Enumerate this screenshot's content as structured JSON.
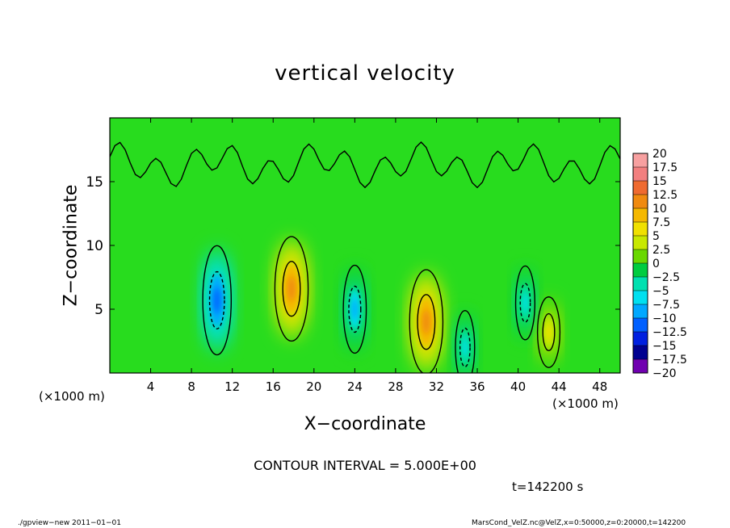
{
  "chart_data": {
    "type": "heatmap",
    "title": "vertical velocity",
    "xlabel": "X−coordinate",
    "ylabel": "Z−coordinate",
    "x_unit_left": "(×1000 m)",
    "x_unit_right": "(×1000 m)",
    "xlim": [
      0,
      50
    ],
    "ylim": [
      0,
      20
    ],
    "x_ticks": [
      4,
      8,
      12,
      16,
      20,
      24,
      28,
      32,
      36,
      40,
      44,
      48
    ],
    "y_ticks": [
      5,
      10,
      15
    ],
    "colorbar": {
      "labels": [
        "20",
        "17.5",
        "15",
        "12.5",
        "10",
        "7.5",
        "5",
        "2.5",
        "0",
        "−2.5",
        "−5",
        "−7.5",
        "−10",
        "−12.5",
        "−15",
        "−17.5",
        "−20"
      ],
      "levels": [
        17.5,
        15,
        12.5,
        10,
        7.5,
        5,
        2.5,
        0,
        -2.5,
        -5,
        -7.5,
        -10,
        -12.5,
        -15,
        -17.5,
        -20
      ],
      "colors": [
        "#f7a0a0",
        "#f27f7f",
        "#ef6a30",
        "#f08a10",
        "#f5b800",
        "#f0e000",
        "#c8e800",
        "#6ad800",
        "#00cc40",
        "#00e0b0",
        "#00e0f0",
        "#00a8ff",
        "#0060ff",
        "#0020e0",
        "#000090",
        "#7000b0"
      ]
    },
    "features": [
      {
        "kind": "updraft",
        "x": 17.8,
        "z": 6.6,
        "peak": 11
      },
      {
        "kind": "updraft",
        "x": 31.0,
        "z": 4.0,
        "peak": 11
      },
      {
        "kind": "updraft",
        "x": 43.0,
        "z": 3.2,
        "peak": 6
      },
      {
        "kind": "downdraft",
        "x": 10.5,
        "z": 5.7,
        "peak": -11
      },
      {
        "kind": "downdraft",
        "x": 24.0,
        "z": 5.0,
        "peak": -8
      },
      {
        "kind": "downdraft",
        "x": 34.8,
        "z": 2.0,
        "peak": -6
      },
      {
        "kind": "downdraft",
        "x": 40.7,
        "z": 5.5,
        "peak": -6
      }
    ],
    "contour_interval_text": "CONTOUR INTERVAL =  5.000E+00",
    "time_text": "t=142200 s"
  },
  "footer": {
    "left": "./gpview−new   2011−01−01",
    "right": "MarsCond_VelZ.nc@VelZ,x=0:50000,z=0:20000,t=142200"
  }
}
